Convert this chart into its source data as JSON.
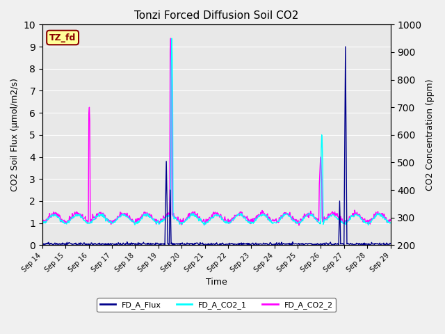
{
  "title": "Tonzi Forced Diffusion Soil CO2",
  "xlabel": "Time",
  "ylabel_left": "CO2 Soil Flux (μmol/m2/s)",
  "ylabel_right": "CO2 Concentration (ppm)",
  "ylim_left": [
    0.0,
    10.0
  ],
  "ylim_right": [
    200,
    1000
  ],
  "xtick_labels": [
    "Sep 14",
    "Sep 15",
    "Sep 16",
    "Sep 17",
    "Sep 18",
    "Sep 19",
    "Sep 20",
    "Sep 21",
    "Sep 22",
    "Sep 23",
    "Sep 24",
    "Sep 25",
    "Sep 26",
    "Sep 27",
    "Sep 28",
    "Sep 29"
  ],
  "line_colors": {
    "FD_A_Flux": "#00008B",
    "FD_A_CO2_1": "#00FFFF",
    "FD_A_CO2_2": "#FF00FF"
  },
  "line_widths": {
    "FD_A_Flux": 1.0,
    "FD_A_CO2_1": 1.0,
    "FD_A_CO2_2": 1.0
  },
  "annotation_text": "TZ_fd",
  "annotation_box_color": "#FFFF99",
  "annotation_box_edge_color": "#8B0000",
  "background_color": "#E8E8E8",
  "grid_color": "#FFFFFF",
  "yticks_left": [
    0.0,
    1.0,
    2.0,
    3.0,
    4.0,
    5.0,
    6.0,
    7.0,
    8.0,
    9.0,
    10.0
  ],
  "yticks_right": [
    200,
    300,
    400,
    500,
    600,
    700,
    800,
    900,
    1000
  ]
}
